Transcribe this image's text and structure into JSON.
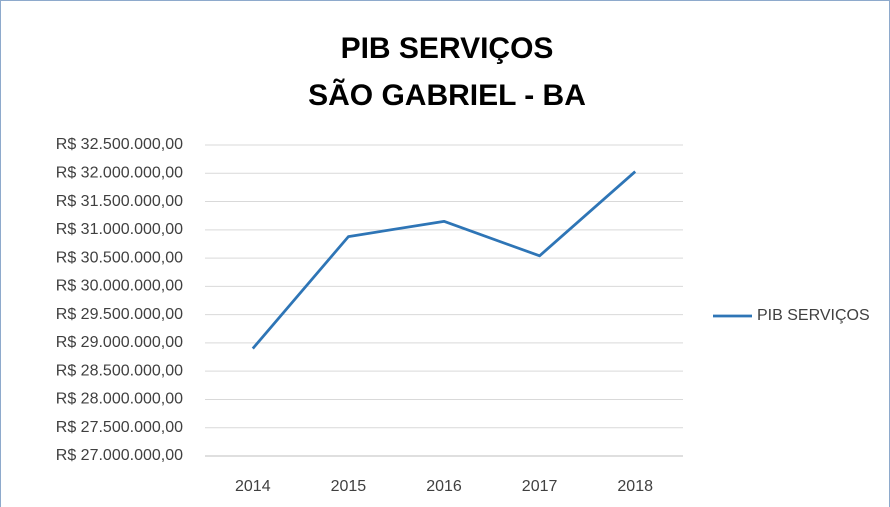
{
  "chart_data": {
    "type": "line",
    "title": [
      "PIB SERVIÇOS",
      "SÃO GABRIEL - BA"
    ],
    "categories": [
      "2014",
      "2015",
      "2016",
      "2017",
      "2018"
    ],
    "series": [
      {
        "name": "PIB SERVIÇOS",
        "color": "#2e75b6",
        "values": [
          28900000,
          30880000,
          31150000,
          30540000,
          32030000
        ]
      }
    ],
    "ylim": [
      27000000,
      32500000
    ],
    "yticks": [
      {
        "value": 27000000,
        "label": "R$ 27.000.000,00"
      },
      {
        "value": 27500000,
        "label": "R$ 27.500.000,00"
      },
      {
        "value": 28000000,
        "label": "R$ 28.000.000,00"
      },
      {
        "value": 28500000,
        "label": "R$ 28.500.000,00"
      },
      {
        "value": 29000000,
        "label": "R$ 29.000.000,00"
      },
      {
        "value": 29500000,
        "label": "R$ 29.500.000,00"
      },
      {
        "value": 30000000,
        "label": "R$ 30.000.000,00"
      },
      {
        "value": 30500000,
        "label": "R$ 30.500.000,00"
      },
      {
        "value": 31000000,
        "label": "R$ 31.000.000,00"
      },
      {
        "value": 31500000,
        "label": "R$ 31.500.000,00"
      },
      {
        "value": 32000000,
        "label": "R$ 32.000.000,00"
      },
      {
        "value": 32500000,
        "label": "R$ 32.500.000,00"
      }
    ],
    "grid": true,
    "legend": "right"
  }
}
